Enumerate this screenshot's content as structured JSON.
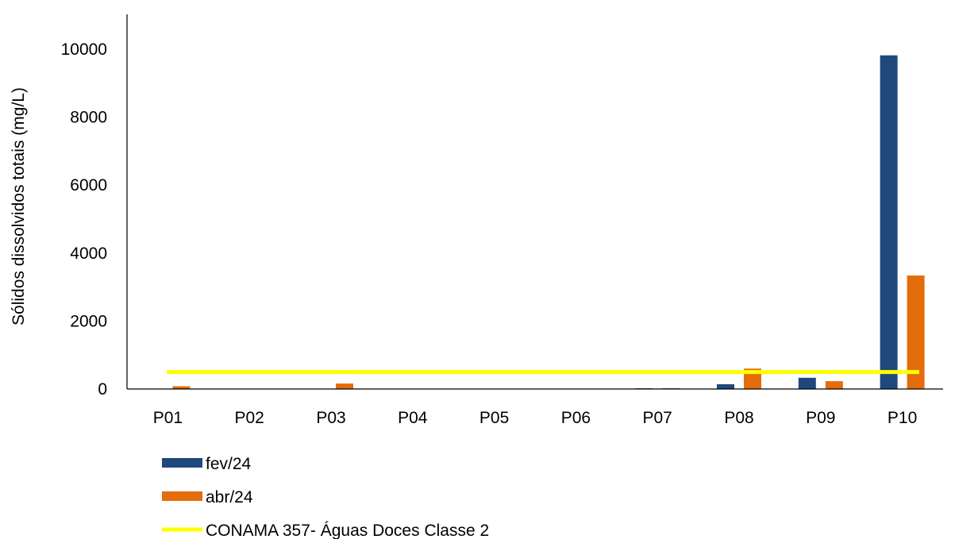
{
  "chart_data": {
    "type": "bar",
    "title": "",
    "xlabel": "",
    "ylabel": "Sólidos dissolvidos totais (mg/L)",
    "ylim": [
      0,
      10000
    ],
    "yticks": [
      "0",
      "2000",
      "4000",
      "6000",
      "8000",
      "10000"
    ],
    "categories": [
      "P01",
      "P02",
      "P03",
      "P04",
      "P05",
      "P06",
      "P07",
      "P08",
      "P09",
      "P10"
    ],
    "series": [
      {
        "name": "fev/24",
        "color": "#1f497d",
        "values": [
          5,
          3,
          8,
          3,
          3,
          3,
          20,
          140,
          330,
          9820
        ]
      },
      {
        "name": "abr/24",
        "color": "#e46c0a",
        "values": [
          80,
          10,
          160,
          10,
          10,
          10,
          25,
          600,
          230,
          3340
        ]
      }
    ],
    "reference_line": {
      "name": "CONAMA 357- Águas Doces Classe 2",
      "color": "#ffff00",
      "value": 500
    },
    "grid": false,
    "legend_position": "bottom-left"
  }
}
